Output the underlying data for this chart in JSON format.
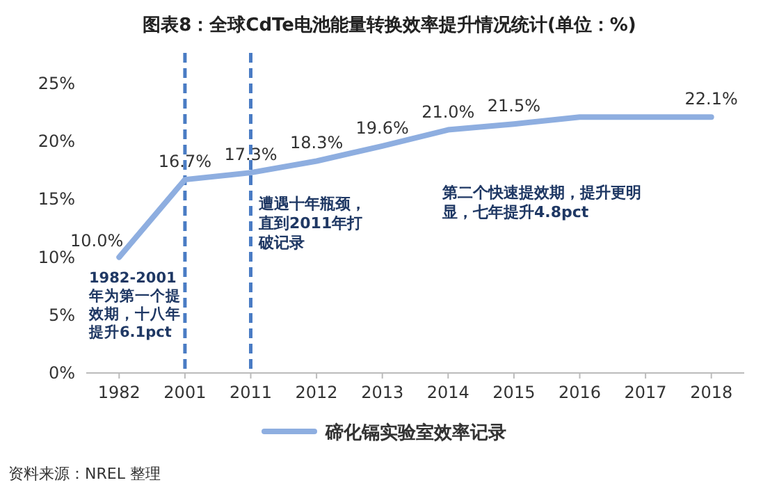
{
  "chart_data": {
    "type": "line",
    "title": "图表8：全球CdTe电池能量转换效率提升情况统计(单位：%)",
    "categories": [
      "1982",
      "2001",
      "2011",
      "2012",
      "2013",
      "2014",
      "2015",
      "2016",
      "2017",
      "2018"
    ],
    "series": [
      {
        "name": "碲化镉实验室效率记录",
        "color": "#8eaee0",
        "values": [
          10.0,
          16.7,
          17.3,
          18.3,
          19.6,
          21.0,
          21.5,
          22.1,
          22.1,
          22.1
        ],
        "value_labels": [
          "10.0%",
          "16.7%",
          "17.3%",
          "18.3%",
          "19.6%",
          "21.0%",
          "21.5%",
          null,
          null,
          "22.1%"
        ]
      }
    ],
    "ylim": [
      0,
      25
    ],
    "yticks": [
      {
        "value": 0,
        "label": "0%"
      },
      {
        "value": 5,
        "label": "5%"
      },
      {
        "value": 10,
        "label": "10%"
      },
      {
        "value": 15,
        "label": "15%"
      },
      {
        "value": 20,
        "label": "20%"
      },
      {
        "value": 25,
        "label": "25%"
      }
    ],
    "ref_lines": [
      {
        "axis": "x",
        "value": "2001",
        "color": "#4a7cc4",
        "line_style": "dashed"
      },
      {
        "axis": "x",
        "value": "2011",
        "color": "#4a7cc4",
        "line_style": "dashed"
      }
    ],
    "legend": "bottom",
    "annotations": [
      "1982-2001年为第一个提效期，十八年提升6.1pct",
      "遭遇十年瓶颈，直到2011年打破记录",
      "第二个快速提效期，提升更明显，七年提升4.8pct",
      "资料来源：NREL 整理"
    ]
  }
}
